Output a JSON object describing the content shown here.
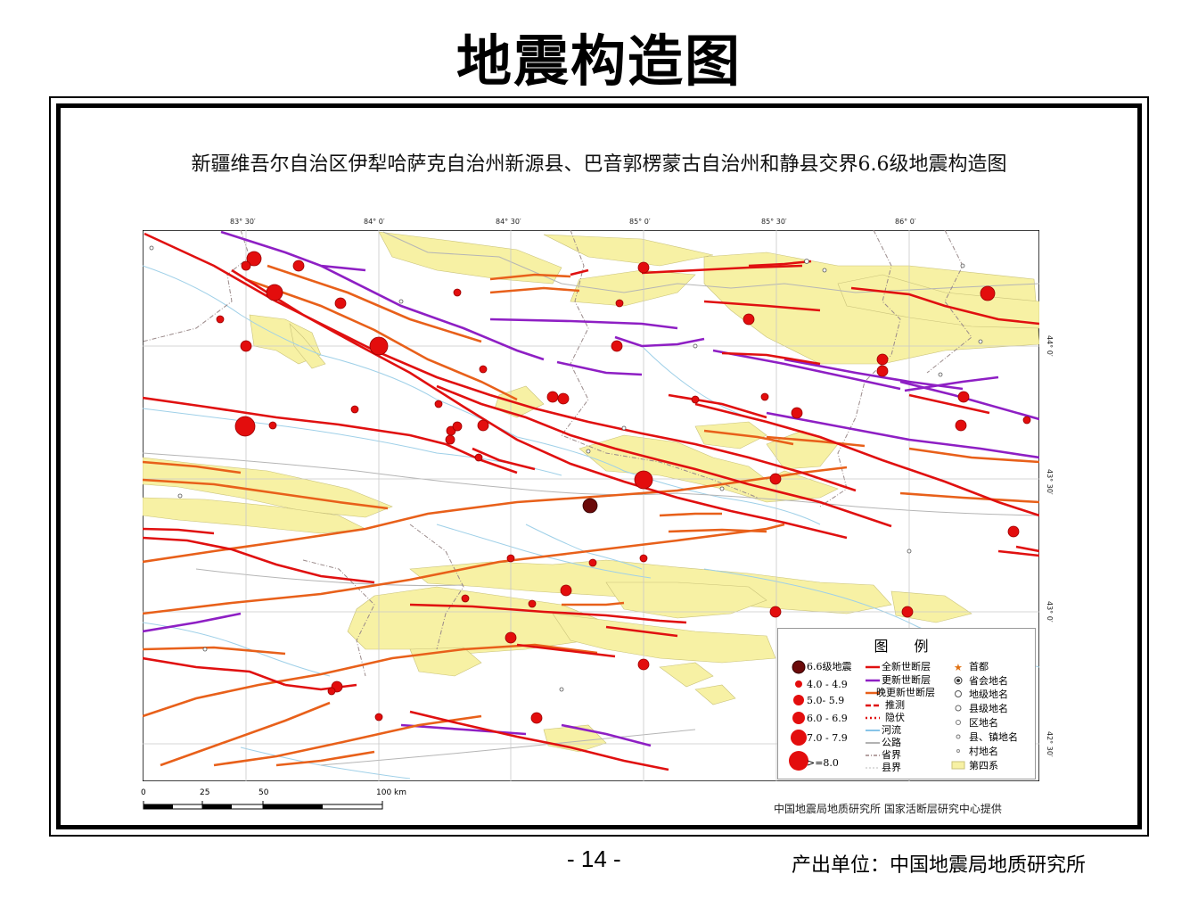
{
  "page": {
    "title": "地震构造图",
    "page_number": "- 14 -",
    "producer": "产出单位：中国地震局地质研究所"
  },
  "map": {
    "title": "新疆维吾尔自治区伊犁哈萨克自治州新源县、巴音郭楞蒙古自治州和静县交界6.6级地震构造图",
    "longitude_labels": [
      "83° 30′",
      "84° 0′",
      "84° 30′",
      "85° 0′",
      "85° 30′",
      "86° 0′"
    ],
    "latitude_labels": [
      "44° 0′",
      "43° 30′",
      "43° 0′",
      "42° 30′"
    ],
    "scale_labels": [
      "0",
      "25",
      "50",
      "100 km"
    ],
    "credits": "中国地震局地质研究所   国家活断层研究中心提供",
    "colors": {
      "quaternary": "#f7f1a4",
      "holocene_fault": "#e01010",
      "pleistocene_fault": "#8e1fc4",
      "late_pleistocene_fault": "#e8601a",
      "epicenter_main": "#6b0a0a",
      "quake": "#e30d0d",
      "river": "#9fd0e8",
      "road": "#b0b0b0"
    }
  },
  "legend": {
    "title": "图 例",
    "quakes": [
      "6.6级地震",
      "4.0 - 4.9",
      "5.0- 5.9",
      "6.0 - 6.9",
      "7.0 - 7.9",
      ">=8.0"
    ],
    "lines": [
      "全新世断层",
      "更新世断层",
      "晚更新世断层",
      "推测",
      "隐伏",
      "河流",
      "公路",
      "省界",
      "县界"
    ],
    "places": [
      "首都",
      "省会地名",
      "地级地名",
      "县级地名",
      "区地名",
      "县、镇地名",
      "村地名",
      "第四系"
    ]
  }
}
